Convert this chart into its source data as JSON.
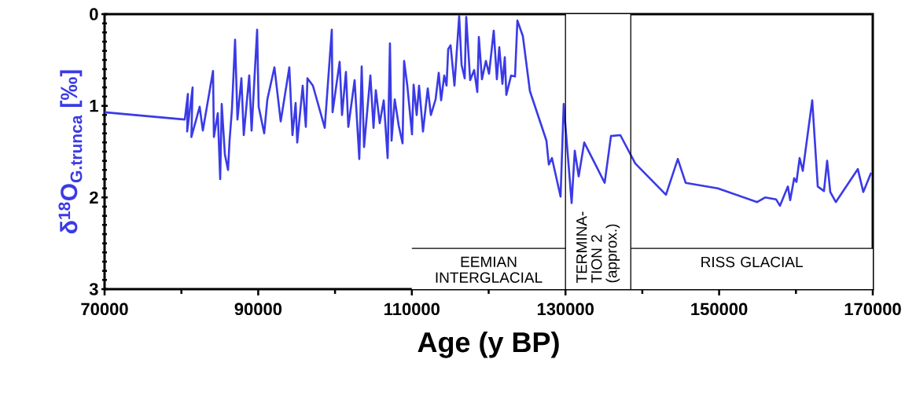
{
  "chart_data": {
    "type": "line",
    "xlabel": "Age (y BP)",
    "ylabel": "δ$^{18}$O$_{G.trunca}$ [‰]",
    "x": [
      70000,
      80440,
      80850,
      80750,
      81460,
      81300,
      82380,
      82790,
      84120,
      84230,
      84740,
      85050,
      85250,
      85660,
      86070,
      86270,
      86580,
      86990,
      87300,
      87810,
      88120,
      88830,
      89140,
      89860,
      90060,
      90780,
      91190,
      92110,
      92930,
      94050,
      94460,
      94870,
      95080,
      95790,
      96200,
      96410,
      97120,
      98660,
      99580,
      99680,
      100600,
      100910,
      101420,
      101730,
      102550,
      103160,
      103470,
      103780,
      104600,
      105010,
      105310,
      105820,
      106340,
      106850,
      107150,
      107360,
      107770,
      108280,
      108790,
      108990,
      109410,
      110020,
      110230,
      110630,
      110940,
      111450,
      112070,
      112480,
      113090,
      113500,
      113810,
      114220,
      114520,
      114730,
      115040,
      115550,
      116160,
      116470,
      116880,
      117080,
      117590,
      118110,
      118520,
      118720,
      119130,
      119640,
      120050,
      120660,
      121070,
      121380,
      121790,
      122100,
      122300,
      122920,
      123430,
      123740,
      124450,
      125370,
      127520,
      127830,
      128240,
      129360,
      129770,
      130800,
      131210,
      131720,
      132440,
      135100,
      135920,
      137140,
      139090,
      143080,
      144620,
      145640,
      149840,
      154950,
      155980,
      157410,
      157920,
      158950,
      159250,
      159770,
      160070,
      160480,
      160890,
      162120,
      162840,
      163650,
      164060,
      164470,
      165190,
      168050,
      168770,
      169790
    ],
    "series": [
      {
        "color": "#3a3ae6",
        "values": [
          1.07,
          1.15,
          0.87,
          1.28,
          0.8,
          1.34,
          1.01,
          1.27,
          0.62,
          1.34,
          1.08,
          1.8,
          0.98,
          1.53,
          1.7,
          1.38,
          1.04,
          0.28,
          1.15,
          0.7,
          1.32,
          0.67,
          1.27,
          0.17,
          1.01,
          1.3,
          0.93,
          0.58,
          1.17,
          0.58,
          1.32,
          0.97,
          1.4,
          0.78,
          1.23,
          0.7,
          0.78,
          1.24,
          0.17,
          1.07,
          0.52,
          1.1,
          0.63,
          1.23,
          0.72,
          1.58,
          0.57,
          1.45,
          0.67,
          1.24,
          0.83,
          1.19,
          0.94,
          1.57,
          0.32,
          1.38,
          0.93,
          1.21,
          1.41,
          0.51,
          0.78,
          1.31,
          0.77,
          1.1,
          0.78,
          1.28,
          0.81,
          1.1,
          0.93,
          0.64,
          0.94,
          0.67,
          0.78,
          0.38,
          0.34,
          0.78,
          0.02,
          0.55,
          0.7,
          0.03,
          0.72,
          0.61,
          0.85,
          0.25,
          0.71,
          0.51,
          0.65,
          0.18,
          0.71,
          0.36,
          0.76,
          0.47,
          0.88,
          0.67,
          0.68,
          0.07,
          0.24,
          0.84,
          1.38,
          1.64,
          1.57,
          1.99,
          0.98,
          2.06,
          1.49,
          1.77,
          1.4,
          1.84,
          1.33,
          1.32,
          1.63,
          1.97,
          1.58,
          1.84,
          1.9,
          2.05,
          2.0,
          2.02,
          2.09,
          1.88,
          2.03,
          1.79,
          1.83,
          1.57,
          1.71,
          0.94,
          1.88,
          1.93,
          1.6,
          1.94,
          2.05,
          1.69,
          1.94,
          1.73
        ]
      }
    ],
    "xlim": [
      70000,
      170000
    ],
    "ylim": [
      3,
      0
    ],
    "xticks": [
      70000,
      90000,
      110000,
      130000,
      150000,
      170000
    ],
    "yticks": [
      0,
      1,
      2,
      3
    ],
    "ref_lines": [
      {
        "axis": "x",
        "value": 130000
      },
      {
        "axis": "x",
        "value": 138500
      }
    ],
    "bands": [
      {
        "axis": "x",
        "from": 110000,
        "to": 130000,
        "label": "EEMIAN INTERGLACIAL",
        "color": "#ffffff"
      },
      {
        "axis": "x",
        "from": 130000,
        "to": 138500,
        "label": "TERMINA- TION 2 (approx.)"
      },
      {
        "axis": "x",
        "from": 138500,
        "to": 170000,
        "label": "RISS GLACIAL",
        "color": "#ffffff"
      }
    ],
    "grid": false,
    "marker": "none",
    "line_style": "solid"
  }
}
